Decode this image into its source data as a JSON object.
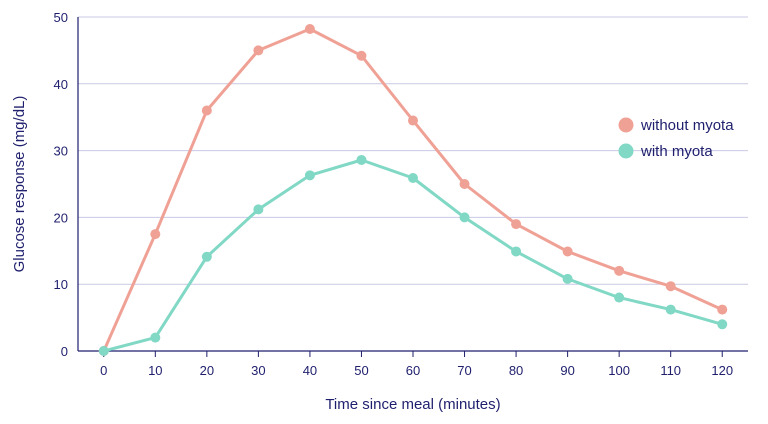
{
  "chart_data": {
    "type": "line",
    "title": "",
    "xlabel": "Time since meal (minutes)",
    "ylabel": "Glucose response (mg/dL)",
    "x": [
      0,
      10,
      20,
      30,
      40,
      50,
      60,
      70,
      80,
      90,
      100,
      110,
      120
    ],
    "xlim": [
      -5,
      125
    ],
    "ylim": [
      0,
      50
    ],
    "yticks": [
      0,
      10,
      20,
      30,
      40,
      50
    ],
    "grid": true,
    "legend_position": "right",
    "series": [
      {
        "name": "without myota",
        "color": "#f0a195",
        "values": [
          0,
          17.5,
          36,
          45,
          48.2,
          44.2,
          34.5,
          25,
          19,
          14.9,
          12,
          9.7,
          6.2
        ]
      },
      {
        "name": "with myota",
        "color": "#80d8c5",
        "values": [
          0,
          2,
          14.1,
          21.2,
          26.3,
          28.6,
          25.9,
          20,
          14.9,
          10.8,
          8,
          6.2,
          4
        ]
      }
    ]
  }
}
